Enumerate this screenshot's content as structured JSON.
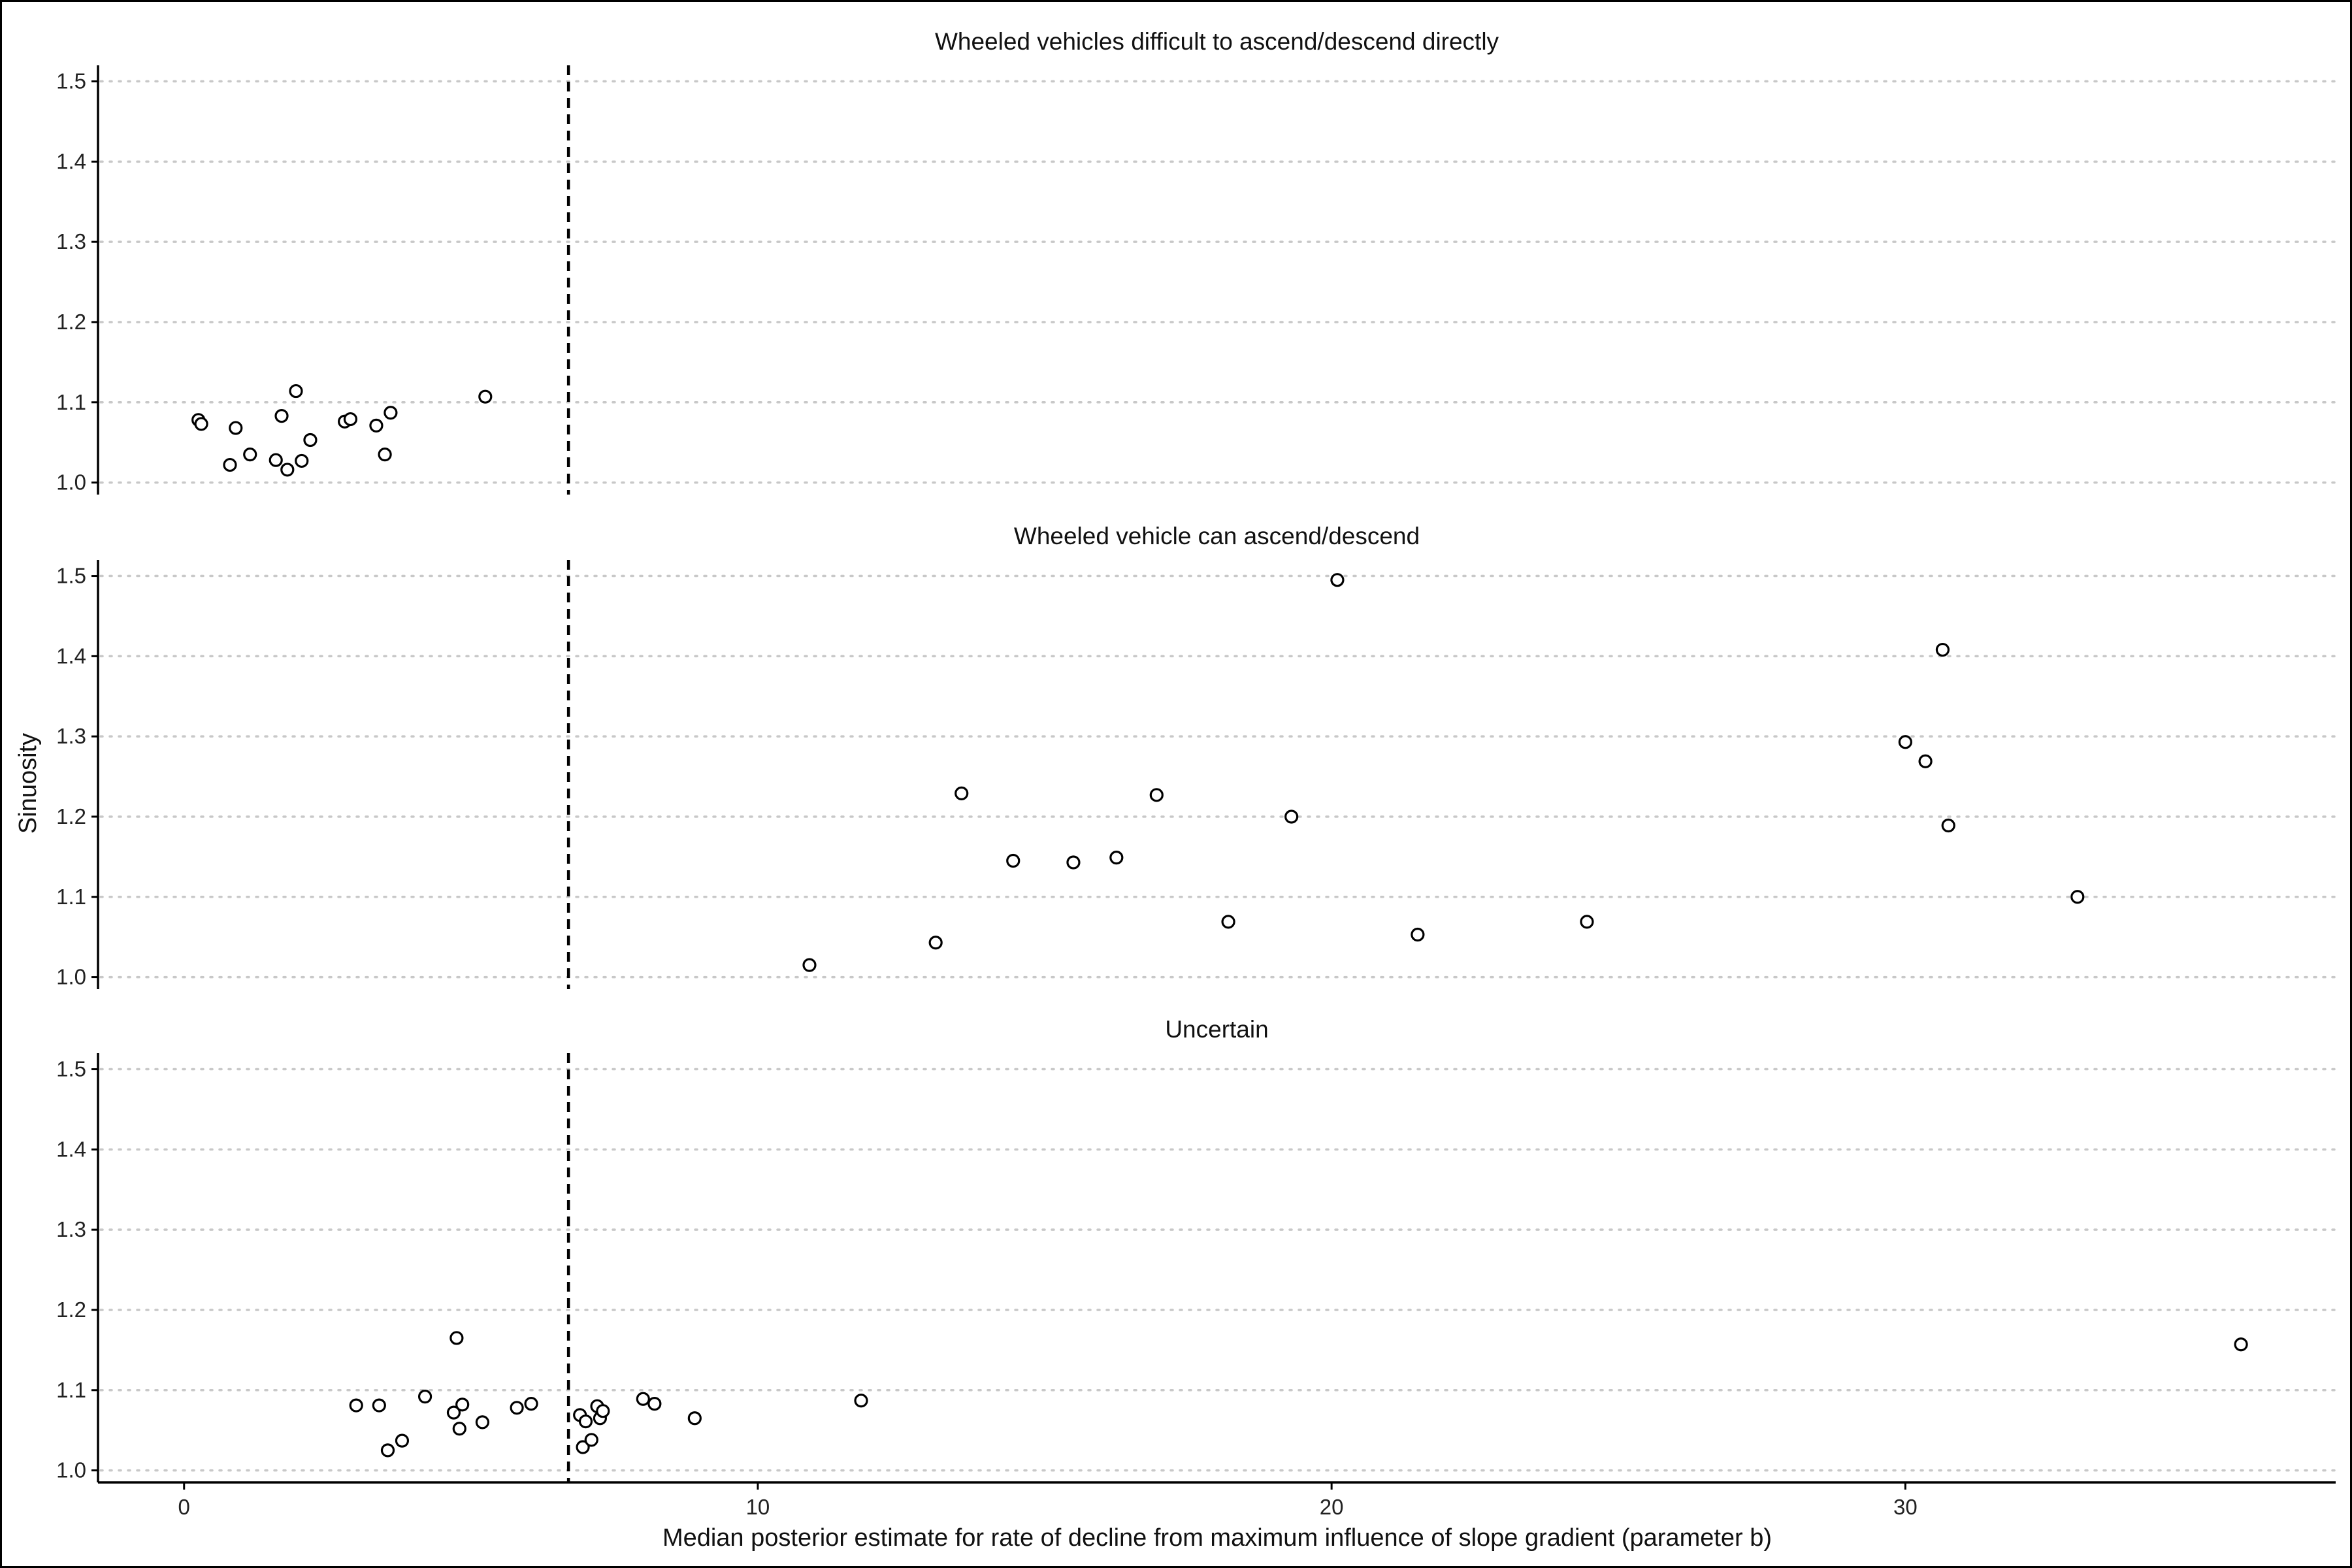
{
  "chart_data": {
    "type": "scatter",
    "xlabel": "Median posterior estimate for rate of decline from maximum influence of slope gradient (parameter b)",
    "ylabel": "Sinuosity",
    "xlim": [
      -1.5,
      37.5
    ],
    "ylim": [
      0.985,
      1.52
    ],
    "x_ticks": [
      0,
      10,
      20,
      30
    ],
    "y_ticks": [
      1.0,
      1.1,
      1.2,
      1.3,
      1.4,
      1.5
    ],
    "y_tick_labels": [
      "1.0",
      "1.1",
      "1.2",
      "1.3",
      "1.4",
      "1.5"
    ],
    "grid": "horizontal dotted",
    "reference_line": {
      "x": 6.7,
      "style": "dashed"
    },
    "panels": [
      {
        "title": "Wheeled vehicles difficult to ascend/descend directly",
        "points": [
          {
            "x": 0.25,
            "y": 1.078
          },
          {
            "x": 0.3,
            "y": 1.073
          },
          {
            "x": 0.8,
            "y": 1.022
          },
          {
            "x": 0.9,
            "y": 1.068
          },
          {
            "x": 1.15,
            "y": 1.035
          },
          {
            "x": 1.6,
            "y": 1.028
          },
          {
            "x": 1.7,
            "y": 1.083
          },
          {
            "x": 1.8,
            "y": 1.016
          },
          {
            "x": 1.95,
            "y": 1.114
          },
          {
            "x": 2.05,
            "y": 1.027
          },
          {
            "x": 2.2,
            "y": 1.053
          },
          {
            "x": 2.8,
            "y": 1.076
          },
          {
            "x": 2.9,
            "y": 1.079
          },
          {
            "x": 3.35,
            "y": 1.071
          },
          {
            "x": 3.5,
            "y": 1.035
          },
          {
            "x": 3.6,
            "y": 1.087
          },
          {
            "x": 5.25,
            "y": 1.107
          }
        ]
      },
      {
        "title": "Wheeled vehicle can ascend/descend",
        "points": [
          {
            "x": 10.9,
            "y": 1.015
          },
          {
            "x": 13.1,
            "y": 1.043
          },
          {
            "x": 13.55,
            "y": 1.229
          },
          {
            "x": 14.45,
            "y": 1.145
          },
          {
            "x": 15.5,
            "y": 1.143
          },
          {
            "x": 16.25,
            "y": 1.149
          },
          {
            "x": 16.95,
            "y": 1.227
          },
          {
            "x": 18.2,
            "y": 1.069
          },
          {
            "x": 19.3,
            "y": 1.2
          },
          {
            "x": 20.1,
            "y": 1.495
          },
          {
            "x": 21.5,
            "y": 1.053
          },
          {
            "x": 24.45,
            "y": 1.069
          },
          {
            "x": 30.0,
            "y": 1.293
          },
          {
            "x": 30.35,
            "y": 1.269
          },
          {
            "x": 30.65,
            "y": 1.408
          },
          {
            "x": 30.75,
            "y": 1.189
          },
          {
            "x": 33.0,
            "y": 1.1
          }
        ]
      },
      {
        "title": "Uncertain",
        "points": [
          {
            "x": 3.0,
            "y": 1.081
          },
          {
            "x": 3.4,
            "y": 1.081
          },
          {
            "x": 3.55,
            "y": 1.025
          },
          {
            "x": 3.8,
            "y": 1.037
          },
          {
            "x": 4.2,
            "y": 1.092
          },
          {
            "x": 4.7,
            "y": 1.072
          },
          {
            "x": 4.75,
            "y": 1.165
          },
          {
            "x": 4.8,
            "y": 1.052
          },
          {
            "x": 4.85,
            "y": 1.082
          },
          {
            "x": 5.2,
            "y": 1.06
          },
          {
            "x": 5.8,
            "y": 1.078
          },
          {
            "x": 6.05,
            "y": 1.083
          },
          {
            "x": 6.9,
            "y": 1.069
          },
          {
            "x": 6.95,
            "y": 1.029
          },
          {
            "x": 7.0,
            "y": 1.061
          },
          {
            "x": 7.1,
            "y": 1.038
          },
          {
            "x": 7.2,
            "y": 1.08
          },
          {
            "x": 7.25,
            "y": 1.065
          },
          {
            "x": 7.3,
            "y": 1.074
          },
          {
            "x": 8.0,
            "y": 1.089
          },
          {
            "x": 8.2,
            "y": 1.083
          },
          {
            "x": 8.9,
            "y": 1.065
          },
          {
            "x": 11.8,
            "y": 1.087
          },
          {
            "x": 35.85,
            "y": 1.157
          }
        ]
      }
    ]
  }
}
